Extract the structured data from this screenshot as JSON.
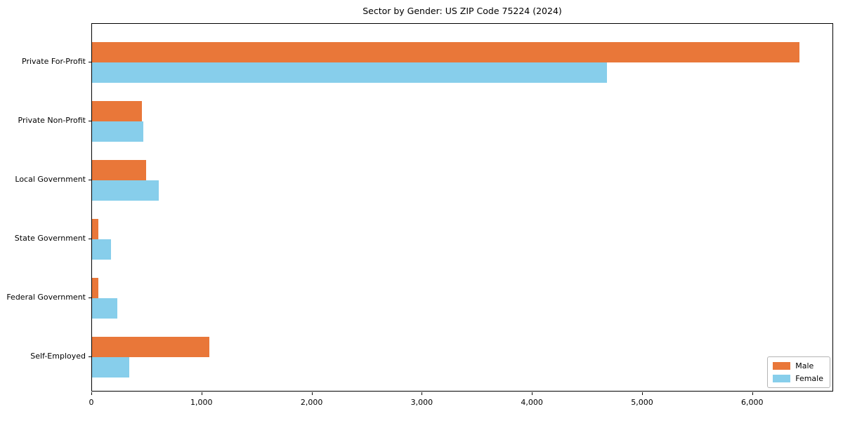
{
  "chart_data": {
    "type": "bar",
    "orientation": "horizontal",
    "title": "Sector by Gender: US ZIP Code 75224 (2024)",
    "categories": [
      "Private For-Profit",
      "Private Non-Profit",
      "Local Government",
      "State Government",
      "Federal Government",
      "Self-Employed"
    ],
    "series": [
      {
        "name": "Male",
        "color": "#e97739",
        "values": [
          6420,
          455,
          490,
          60,
          55,
          1065
        ]
      },
      {
        "name": "Female",
        "color": "#87ceeb",
        "values": [
          4675,
          465,
          605,
          170,
          230,
          340
        ]
      }
    ],
    "xlabel": "",
    "ylabel": "",
    "xlim": [
      0,
      6735
    ],
    "xticks": [
      0,
      1000,
      2000,
      3000,
      4000,
      5000,
      6000
    ],
    "xtick_labels": [
      "0",
      "1,000",
      "2,000",
      "3,000",
      "4,000",
      "5,000",
      "6,000"
    ],
    "grid": false,
    "legend_position": "lower right",
    "colors": {
      "axis": "#000000",
      "background": "#ffffff",
      "legend_border": "#b4b4b4"
    }
  }
}
